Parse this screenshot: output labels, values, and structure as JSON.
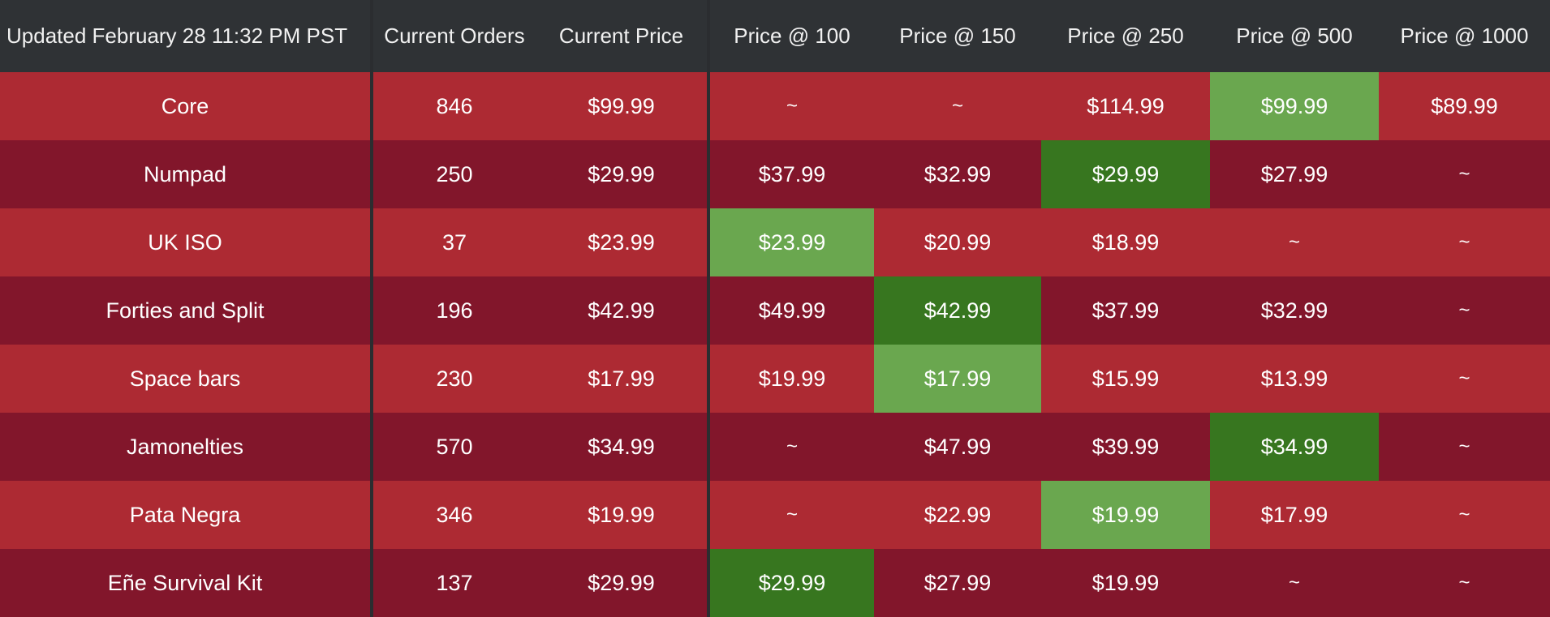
{
  "header": {
    "updated": "Updated February 28  11:32 PM PST",
    "columns": [
      "Current Orders",
      "Current Price",
      "Price @ 100",
      "Price @ 150",
      "Price @ 250",
      "Price @ 500",
      "Price @ 1000"
    ]
  },
  "colors": {
    "header_bg": "#2f3235",
    "row_light": "#ad2a33",
    "row_dark": "#82162b",
    "highlight_light": "#6aa74f",
    "highlight_dark": "#37761f",
    "text": "#ffffff"
  },
  "rows": [
    {
      "name": "Core",
      "orders": "846",
      "current": "$99.99",
      "p100": "~",
      "p150": "~",
      "p250": "$114.99",
      "p500": "$99.99",
      "p1000": "$89.99",
      "highlight": "p500"
    },
    {
      "name": "Numpad",
      "orders": "250",
      "current": "$29.99",
      "p100": "$37.99",
      "p150": "$32.99",
      "p250": "$29.99",
      "p500": "$27.99",
      "p1000": "~",
      "highlight": "p250"
    },
    {
      "name": "UK ISO",
      "orders": "37",
      "current": "$23.99",
      "p100": "$23.99",
      "p150": "$20.99",
      "p250": "$18.99",
      "p500": "~",
      "p1000": "~",
      "highlight": "p100"
    },
    {
      "name": "Forties and Split",
      "orders": "196",
      "current": "$42.99",
      "p100": "$49.99",
      "p150": "$42.99",
      "p250": "$37.99",
      "p500": "$32.99",
      "p1000": "~",
      "highlight": "p150"
    },
    {
      "name": "Space bars",
      "orders": "230",
      "current": "$17.99",
      "p100": "$19.99",
      "p150": "$17.99",
      "p250": "$15.99",
      "p500": "$13.99",
      "p1000": "~",
      "highlight": "p150"
    },
    {
      "name": "Jamonelties",
      "orders": "570",
      "current": "$34.99",
      "p100": "~",
      "p150": "$47.99",
      "p250": "$39.99",
      "p500": "$34.99",
      "p1000": "~",
      "highlight": "p500"
    },
    {
      "name": "Pata Negra",
      "orders": "346",
      "current": "$19.99",
      "p100": "~",
      "p150": "$22.99",
      "p250": "$19.99",
      "p500": "$17.99",
      "p1000": "~",
      "highlight": "p250"
    },
    {
      "name": "Eñe Survival Kit",
      "orders": "137",
      "current": "$29.99",
      "p100": "$29.99",
      "p150": "$27.99",
      "p250": "$19.99",
      "p500": "~",
      "p1000": "~",
      "highlight": "p100"
    }
  ]
}
